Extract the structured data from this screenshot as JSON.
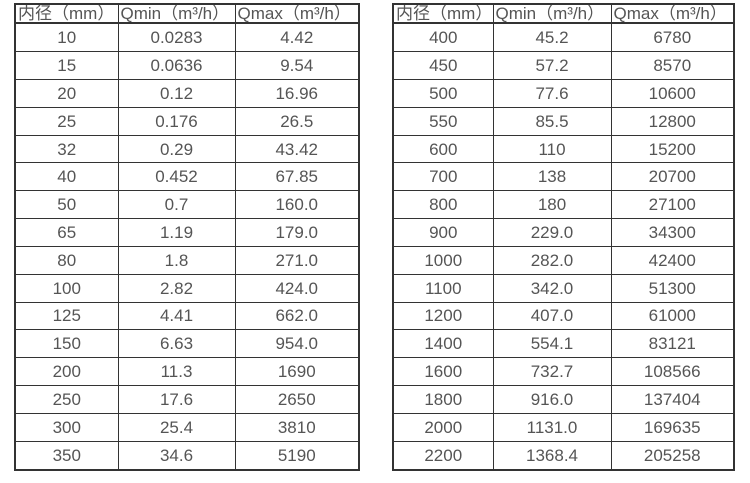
{
  "columns": [
    "内径（mm）",
    "Qmin（m³/h）",
    "Qmax（m³/h）"
  ],
  "tables": [
    {
      "id": "small-diameters",
      "headers": [
        "内径（mm）",
        "Qmin（m³/h）",
        "Qmax（m³/h）"
      ],
      "rows": [
        [
          "10",
          "0.0283",
          "4.42"
        ],
        [
          "15",
          "0.0636",
          "9.54"
        ],
        [
          "20",
          "0.12",
          "16.96"
        ],
        [
          "25",
          "0.176",
          "26.5"
        ],
        [
          "32",
          "0.29",
          "43.42"
        ],
        [
          "40",
          "0.452",
          "67.85"
        ],
        [
          "50",
          "0.7",
          "160.0"
        ],
        [
          "65",
          "1.19",
          "179.0"
        ],
        [
          "80",
          "1.8",
          "271.0"
        ],
        [
          "100",
          "2.82",
          "424.0"
        ],
        [
          "125",
          "4.41",
          "662.0"
        ],
        [
          "150",
          "6.63",
          "954.0"
        ],
        [
          "200",
          "11.3",
          "1690"
        ],
        [
          "250",
          "17.6",
          "2650"
        ],
        [
          "300",
          "25.4",
          "3810"
        ],
        [
          "350",
          "34.6",
          "5190"
        ]
      ]
    },
    {
      "id": "large-diameters",
      "headers": [
        "内径（mm）",
        "Qmin（m³/h）",
        "Qmax（m³/h）"
      ],
      "rows": [
        [
          "400",
          "45.2",
          "6780"
        ],
        [
          "450",
          "57.2",
          "8570"
        ],
        [
          "500",
          "77.6",
          "10600"
        ],
        [
          "550",
          "85.5",
          "12800"
        ],
        [
          "600",
          "110",
          "15200"
        ],
        [
          "700",
          "138",
          "20700"
        ],
        [
          "800",
          "180",
          "27100"
        ],
        [
          "900",
          "229.0",
          "34300"
        ],
        [
          "1000",
          "282.0",
          "42400"
        ],
        [
          "1100",
          "342.0",
          "51300"
        ],
        [
          "1200",
          "407.0",
          "61000"
        ],
        [
          "1400",
          "554.1",
          "83121"
        ],
        [
          "1600",
          "732.7",
          "108566"
        ],
        [
          "1800",
          "916.0",
          "137404"
        ],
        [
          "2000",
          "1131.0",
          "169635"
        ],
        [
          "2200",
          "1368.4",
          "205258"
        ]
      ]
    }
  ],
  "colors": {
    "border": "#333333",
    "text": "#555555",
    "background": "#ffffff"
  }
}
